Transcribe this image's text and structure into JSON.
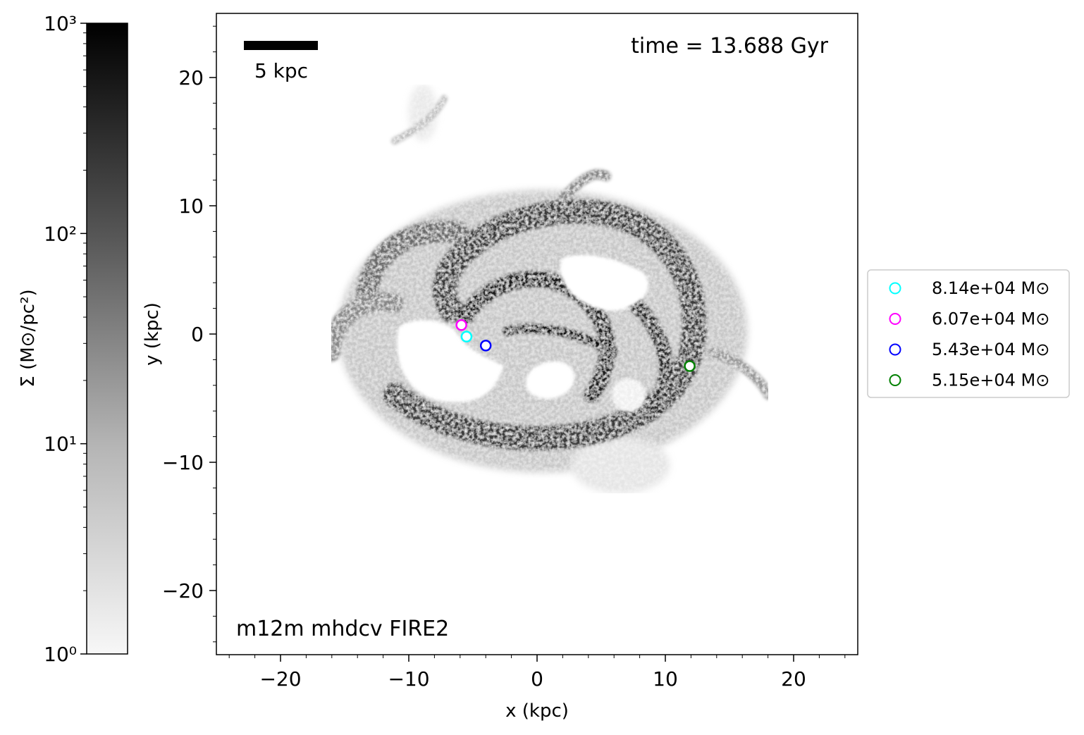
{
  "chart_data": {
    "type": "scatter",
    "title": "",
    "subtitle": "",
    "annotations": {
      "time_label": "time = 13.688 Gyr",
      "run_label": "m12m mhdcv FIRE2",
      "scalebar_label": "5 kpc",
      "scalebar_length_kpc": 5
    },
    "xlabel": "x (kpc)",
    "ylabel": "y (kpc)",
    "xlim": [
      -25,
      25
    ],
    "ylim": [
      -25,
      25
    ],
    "xticks": [
      -20,
      -10,
      0,
      10,
      20
    ],
    "yticks": [
      -20,
      -10,
      0,
      10,
      20
    ],
    "xtick_labels": [
      "−20",
      "−10",
      "0",
      "10",
      "20"
    ],
    "ytick_labels": [
      "−20",
      "−10",
      "0",
      "10",
      "20"
    ],
    "grid": false,
    "legend_position": "right",
    "background": "gas surface density map (grayscale)",
    "colorbar": {
      "label": "Σ (M⊙/pc²)",
      "scale": "log",
      "range": [
        1,
        1000
      ],
      "ticks": [
        1,
        10,
        100,
        1000
      ],
      "tick_labels": [
        "10⁰",
        "10¹",
        "10²",
        "10³"
      ],
      "color_low": "#f7f7f7",
      "color_high": "#000000",
      "position": "left"
    },
    "series": [
      {
        "name": "8.14e+04 M⊙",
        "color": "#00ffff",
        "x": -5.5,
        "y": -0.2
      },
      {
        "name": "6.07e+04 M⊙",
        "color": "#ff00ff",
        "x": -5.9,
        "y": 0.7
      },
      {
        "name": "5.43e+04 M⊙",
        "color": "#0000ff",
        "x": -4.0,
        "y": -0.9
      },
      {
        "name": "5.15e+04 M⊙",
        "color": "#008000",
        "x": 11.9,
        "y": -2.5
      }
    ]
  }
}
